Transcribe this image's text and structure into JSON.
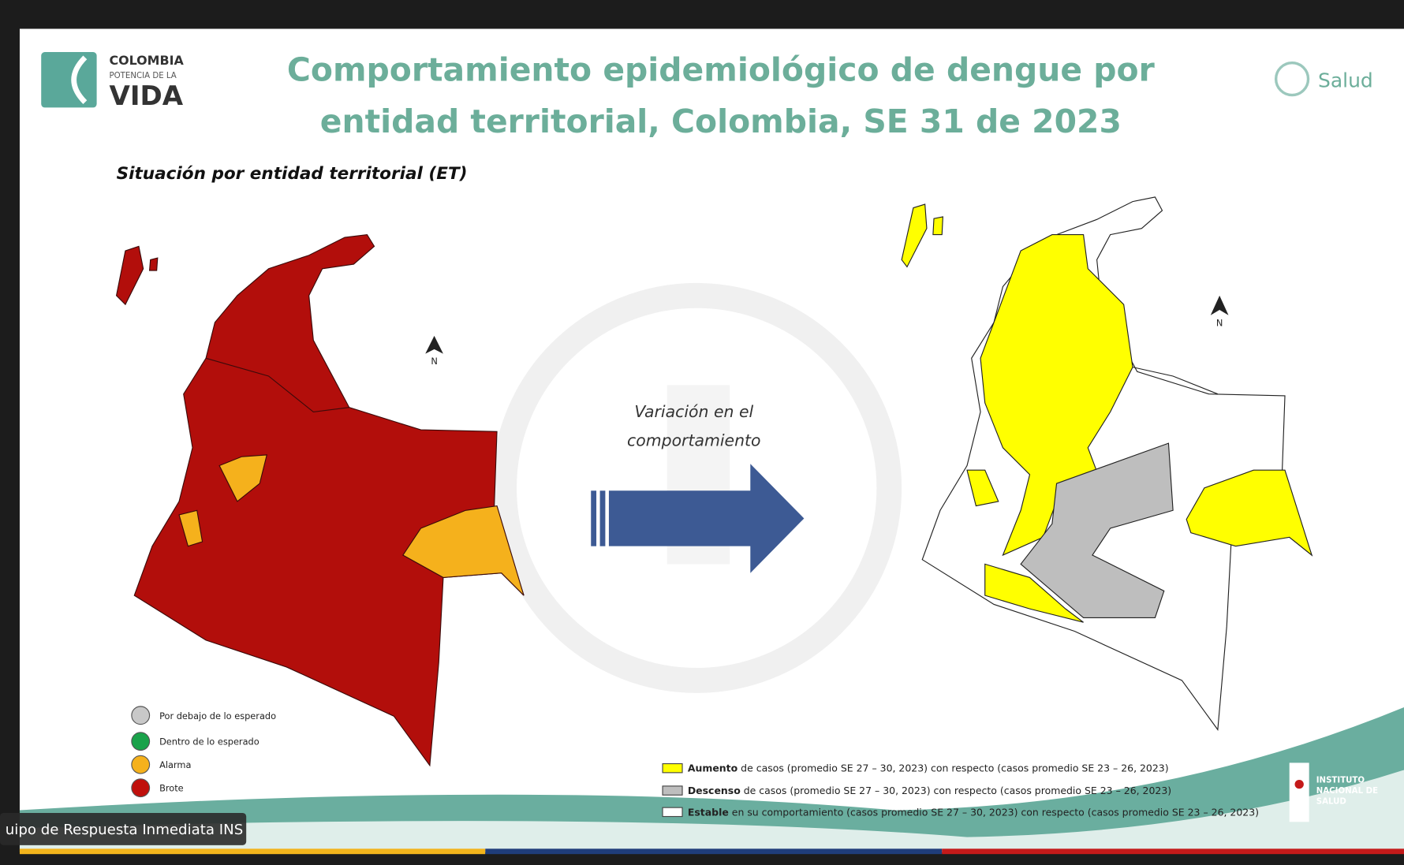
{
  "header": {
    "logo": {
      "line1": "COLOMBIA",
      "line2": "POTENCIA DE LA",
      "line3": "VIDA"
    },
    "title_line1": "Comportamiento epidemiológico de dengue por",
    "title_line2": "entidad territorial, Colombia, SE 31 de 2023",
    "ministry": "Salud"
  },
  "subtitle": "Situación por entidad territorial (ET)",
  "left_map": {
    "north": "N",
    "legend": [
      "Por debajo de lo esperado",
      "Dentro de lo esperado",
      "Alarma",
      "Brote"
    ]
  },
  "arrow": {
    "line1": "Variación en el",
    "line2": "comportamiento"
  },
  "right_map": {
    "north": "N",
    "legend": [
      {
        "bold": "Aumento",
        "text": " de casos (promedio SE 27 – 30, 2023) con respecto (casos promedio SE 23 – 26, 2023)"
      },
      {
        "bold": "Descenso",
        "text": " de casos (promedio SE 27 – 30, 2023) con respecto (casos promedio SE 23 – 26, 2023)"
      },
      {
        "bold": "Estable",
        "text": " en su comportamiento (casos promedio SE 27 – 30, 2023) con respecto (casos promedio SE 23 – 26, 2023)"
      }
    ]
  },
  "institute": {
    "line1": "INSTITUTO",
    "line2": "NACIONAL DE",
    "line3": "SALUD"
  },
  "speaker_tag": "uipo de Respuesta Inmediata INS"
}
